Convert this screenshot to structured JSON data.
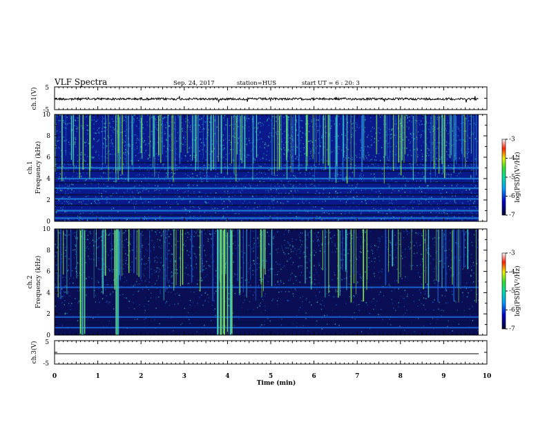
{
  "header": {
    "title": "VLF Spectra",
    "date": "Sep. 24, 2017",
    "station": "station=HUS",
    "start": "start  UT =   6 : 20: 3"
  },
  "chart_data": [
    {
      "type": "line",
      "panel": "ch1-waveform",
      "ylabel": "ch.1(V)",
      "yticks": [
        "5",
        "-5"
      ],
      "ylim": [
        -5,
        5
      ],
      "xlim": [
        0,
        10
      ],
      "level": -0.3
    },
    {
      "type": "heatmap",
      "panel": "ch1-spectrogram",
      "ylabel": "ch.1\nFrequency (kHz)",
      "ylabel_line1": "ch.1",
      "ylabel_line2": "Frequency (kHz)",
      "yticks": [
        "0",
        "2",
        "4",
        "6",
        "8",
        "10"
      ],
      "ylim": [
        0,
        10
      ],
      "xlim": [
        0,
        9.85
      ],
      "colorbar": {
        "label": "log(PSD)(V²/Hz)",
        "ticks": [
          "-3",
          "-4",
          "-5",
          "-6",
          "-7"
        ],
        "range": [
          -7,
          -3
        ]
      },
      "bands_khz": [
        0.3,
        0.6,
        1.0,
        1.5,
        2.1,
        2.5,
        3.1,
        3.6,
        4.0,
        4.7,
        5.0,
        5.5
      ],
      "colors": {
        "background": "#0a1a8c",
        "mid": "#1f7fd6",
        "high": "#46d6b4",
        "peak": "#7ee24a"
      }
    },
    {
      "type": "heatmap",
      "panel": "ch2-spectrogram",
      "ylabel": "ch.2\nFrequency (kHz)",
      "ylabel_line1": "ch.2",
      "ylabel_line2": "Frequency (kHz)",
      "yticks": [
        "0",
        "2",
        "4",
        "6",
        "8",
        "10"
      ],
      "ylim": [
        0,
        10
      ],
      "xlim": [
        0,
        9.85
      ],
      "colorbar": {
        "label": "log(PSD)(V²/Hz)",
        "ticks": [
          "-3",
          "-4",
          "-5",
          "-6",
          "-7"
        ],
        "range": [
          -7,
          -3
        ]
      },
      "bands_khz": [
        0.7,
        1.2,
        1.7,
        2.2,
        4.5
      ],
      "colors": {
        "background": "#0a0f55",
        "mid": "#1a5fd0",
        "high": "#3fc7c0",
        "peak": "#7ee24a"
      }
    },
    {
      "type": "line",
      "panel": "ch3-waveform",
      "ylabel": "ch.3(V)",
      "yticks": [
        "5",
        "-5"
      ],
      "ylim": [
        -5,
        5
      ],
      "xlim": [
        0,
        10
      ],
      "level": -0.6
    }
  ],
  "xaxis": {
    "label": "Time (min)",
    "ticks": [
      "0",
      "1",
      "2",
      "3",
      "4",
      "5",
      "6",
      "7",
      "8",
      "9",
      "10"
    ],
    "range": [
      0,
      10
    ]
  }
}
